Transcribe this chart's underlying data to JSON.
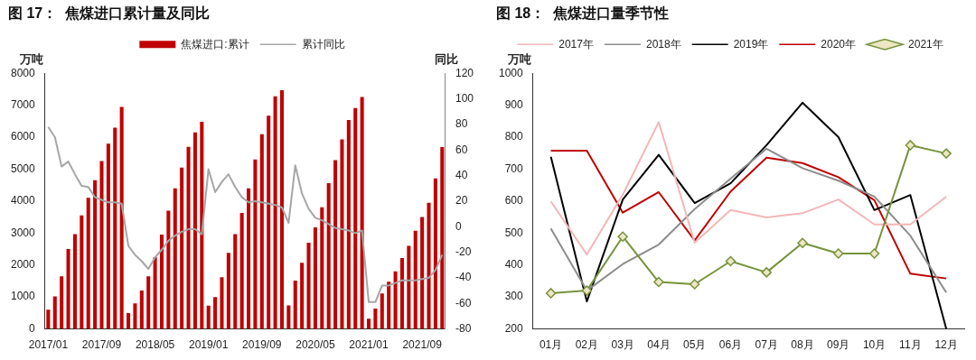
{
  "chart_data": [
    {
      "type": "bar",
      "title": "图 17：  焦煤进口累计量及同比",
      "ylabel": "万吨",
      "y2label": "同比",
      "legend": "top",
      "categories": [
        "2017/01",
        null,
        null,
        null,
        null,
        null,
        null,
        null,
        "2017/09",
        null,
        null,
        null,
        null,
        null,
        null,
        null,
        "2018/05",
        null,
        null,
        null,
        null,
        null,
        null,
        null,
        "2019/01",
        null,
        null,
        null,
        null,
        null,
        null,
        null,
        "2019/09",
        null,
        null,
        null,
        null,
        null,
        null,
        null,
        "2020/05",
        null,
        null,
        null,
        null,
        null,
        null,
        null,
        "2021/01",
        null,
        null,
        null,
        null,
        null,
        null,
        null,
        "2021/09",
        null,
        null,
        null
      ],
      "series": [
        {
          "name": "焦煤进口:累计",
          "color": "#c00000",
          "values": [
            600,
            1020,
            1650,
            2500,
            2970,
            3550,
            4100,
            4650,
            5250,
            5800,
            6300,
            6950,
            500,
            800,
            1200,
            1650,
            2250,
            2950,
            3700,
            4400,
            5050,
            5700,
            6150,
            6480,
            730,
            1000,
            1620,
            2380,
            2970,
            3630,
            4400,
            5300,
            6090,
            6670,
            7280,
            7470,
            740,
            1510,
            2070,
            2700,
            3180,
            3810,
            4560,
            5280,
            5930,
            6540,
            6910,
            7260,
            320,
            640,
            1110,
            1480,
            1800,
            2220,
            2600,
            3070,
            3500,
            3950,
            4710,
            5690
          ]
        },
        {
          "name": "累计同比",
          "type": "line",
          "axis": "y2",
          "color": "#a6a6a6",
          "values": [
            78,
            70,
            47,
            51,
            41,
            32,
            31,
            23,
            21,
            19,
            19,
            18,
            -15,
            -22,
            -27,
            -33,
            -24,
            -18,
            -11,
            -7,
            -4,
            -2,
            -2,
            -6,
            45,
            27,
            35,
            41,
            31,
            23,
            19,
            20,
            19,
            18,
            17,
            15,
            3,
            48,
            26,
            14,
            7,
            5,
            2,
            -1,
            -2,
            -3,
            -5,
            -3,
            -59,
            -59,
            -46,
            -46,
            -44,
            -42,
            -42,
            -42,
            -41,
            -40,
            -34,
            -22
          ]
        }
      ],
      "ylim": [
        0,
        8000
      ],
      "yticks": [
        0,
        1000,
        2000,
        3000,
        4000,
        5000,
        6000,
        7000,
        8000
      ],
      "y2lim": [
        -80,
        120
      ],
      "y2ticks": [
        -80,
        -60,
        -40,
        -20,
        0,
        20,
        40,
        60,
        80,
        100,
        120
      ]
    },
    {
      "type": "line",
      "title": "图 18：  焦煤进口量季节性",
      "ylabel": "万吨",
      "legend": "top",
      "categories": [
        "01月",
        "02月",
        "03月",
        "04月",
        "05月",
        "06月",
        "07月",
        "08月",
        "09月",
        "10月",
        "11月",
        "12月"
      ],
      "series": [
        {
          "name": "2017年",
          "color": "#f4b6b8",
          "values": [
            599,
            433,
            620,
            847,
            470,
            572,
            549,
            562,
            605,
            527,
            527,
            614
          ]
        },
        {
          "name": "2018年",
          "color": "#8c8c8c",
          "values": [
            514,
            320,
            403,
            464,
            575,
            670,
            764,
            703,
            664,
            614,
            492,
            314
          ]
        },
        {
          "name": "2019年",
          "color": "#000000",
          "values": [
            739,
            286,
            605,
            745,
            594,
            656,
            775,
            908,
            800,
            572,
            619,
            200
          ]
        },
        {
          "name": "2020年",
          "color": "#c00000",
          "values": [
            758,
            758,
            564,
            628,
            477,
            630,
            736,
            719,
            675,
            603,
            373,
            358
          ]
        },
        {
          "name": "2021年",
          "color": "#76923c",
          "marker": "diamond",
          "values": [
            312,
            320,
            489,
            347,
            340,
            412,
            377,
            469,
            436,
            436,
            775,
            749
          ]
        }
      ],
      "ylim": [
        200,
        1000
      ],
      "yticks": [
        200,
        300,
        400,
        500,
        600,
        700,
        800,
        900,
        1000
      ]
    }
  ]
}
